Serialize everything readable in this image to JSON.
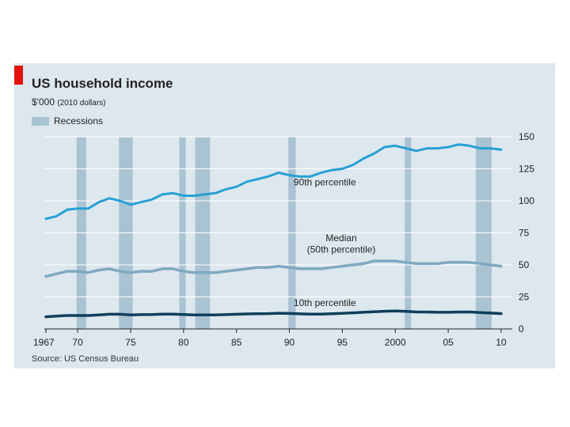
{
  "header": {
    "title": "US household income",
    "subtitle_main": "$'000",
    "subtitle_note": "(2010 dollars)",
    "legend_label": "Recessions"
  },
  "source": "Source: US Census Bureau",
  "colors": {
    "p90": "#27a0d4",
    "median": "#7fa9bf",
    "p10": "#0f3f5c",
    "recession": "#a9c3d2",
    "panel": "#dde7ee",
    "brand": "#e3120b"
  },
  "chart_data": {
    "type": "line",
    "title": "US household income",
    "ylabel": "$'000 (2010 dollars)",
    "ylim": [
      0,
      150
    ],
    "yticks": [
      0,
      25,
      50,
      75,
      100,
      125,
      150
    ],
    "xlim": [
      1967,
      2010
    ],
    "xticks": [
      1967,
      1970,
      1975,
      1980,
      1985,
      1990,
      1995,
      2000,
      2005,
      2010
    ],
    "xtick_labels": [
      "1967",
      "70",
      "75",
      "80",
      "85",
      "90",
      "95",
      "2000",
      "05",
      "10"
    ],
    "recessions": [
      [
        1969.9,
        1970.8
      ],
      [
        1973.9,
        1975.2
      ],
      [
        1979.6,
        1980.2
      ],
      [
        1981.1,
        1982.5
      ],
      [
        1989.9,
        1990.6
      ],
      [
        2000.9,
        2001.5
      ],
      [
        2007.6,
        2009.1
      ]
    ],
    "x": [
      1967,
      1968,
      1969,
      1970,
      1971,
      1972,
      1973,
      1974,
      1975,
      1976,
      1977,
      1978,
      1979,
      1980,
      1981,
      1982,
      1983,
      1984,
      1985,
      1986,
      1987,
      1988,
      1989,
      1990,
      1991,
      1992,
      1993,
      1994,
      1995,
      1996,
      1997,
      1998,
      1999,
      2000,
      2001,
      2002,
      2003,
      2004,
      2005,
      2006,
      2007,
      2008,
      2009,
      2010
    ],
    "series": [
      {
        "name": "90th percentile",
        "label": "90th percentile",
        "color_key": "p90",
        "values": [
          86,
          88,
          93,
          94,
          94,
          99,
          102,
          100,
          97,
          99,
          101,
          105,
          106,
          104,
          104,
          105,
          106,
          109,
          111,
          115,
          117,
          119,
          122,
          120,
          119,
          119,
          122,
          124,
          125,
          128,
          133,
          137,
          142,
          143,
          141,
          139,
          141,
          141,
          142,
          144,
          143,
          141,
          141,
          140
        ]
      },
      {
        "name": "Median",
        "label_line1": "Median",
        "label_line2": "(50th percentile)",
        "color_key": "median",
        "values": [
          41,
          43,
          45,
          45,
          44,
          46,
          47,
          45,
          44,
          45,
          45,
          47,
          47,
          45,
          44,
          44,
          44,
          45,
          46,
          47,
          48,
          48,
          49,
          48,
          47,
          47,
          47,
          48,
          49,
          50,
          51,
          53,
          53,
          53,
          52,
          51,
          51,
          51,
          52,
          52,
          52,
          51,
          50,
          49
        ]
      },
      {
        "name": "10th percentile",
        "label": "10th percentile",
        "color_key": "p10",
        "values": [
          9.5,
          10,
          10.5,
          10.5,
          10.5,
          11,
          11.5,
          11.5,
          11,
          11.2,
          11.3,
          11.6,
          11.6,
          11.3,
          11,
          10.9,
          11,
          11.2,
          11.5,
          11.7,
          11.9,
          12,
          12.3,
          12.1,
          11.8,
          11.6,
          11.6,
          11.9,
          12.2,
          12.6,
          13,
          13.4,
          13.8,
          14,
          13.7,
          13.3,
          13.2,
          13,
          13,
          13.2,
          13.3,
          12.8,
          12.4,
          12
        ]
      }
    ]
  }
}
